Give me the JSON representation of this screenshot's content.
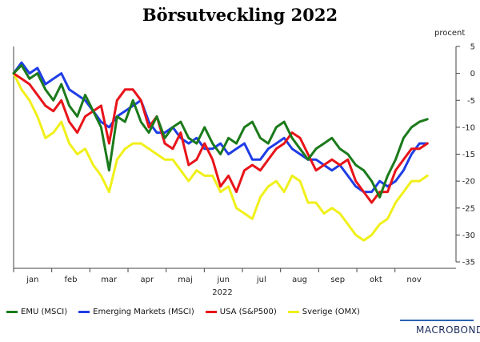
{
  "title": "Börsutveckling 2022",
  "unit": "procent",
  "brand": "MACROBOND",
  "chart_data": {
    "type": "line",
    "title": "Börsutveckling 2022",
    "ylabel": "procent",
    "xlabel": "2022",
    "ylim": [
      -35,
      5
    ],
    "yticks": [
      5,
      0,
      -5,
      -10,
      -15,
      -20,
      -25,
      -30,
      -35
    ],
    "months": [
      "jan",
      "feb",
      "mar",
      "apr",
      "maj",
      "jun",
      "jul",
      "aug",
      "sep",
      "okt",
      "nov"
    ],
    "grid": false,
    "legend": "bottom",
    "series": [
      {
        "name": "EMU (MSCI)",
        "color": "#1b7a1b",
        "values": [
          0,
          1.5,
          -1,
          0,
          -3,
          -5,
          -2,
          -6,
          -8,
          -4,
          -7,
          -10,
          -18,
          -8,
          -9,
          -5,
          -9,
          -11,
          -8,
          -12,
          -10,
          -9,
          -12,
          -13,
          -10,
          -13,
          -15,
          -12,
          -13,
          -10,
          -9,
          -12,
          -13,
          -10,
          -9,
          -12,
          -14,
          -16,
          -14,
          -13,
          -12,
          -14,
          -15,
          -17,
          -18,
          -20,
          -23,
          -19,
          -16,
          -12,
          -10,
          -9,
          -8.5
        ]
      },
      {
        "name": "Emerging Markets (MSCI)",
        "color": "#1f3de6",
        "values": [
          0,
          2,
          0,
          1,
          -2,
          -1,
          0,
          -3,
          -4,
          -5,
          -7,
          -9,
          -10,
          -8,
          -7,
          -6,
          -5,
          -9,
          -11,
          -11,
          -10,
          -12,
          -13,
          -12,
          -14,
          -14,
          -13,
          -15,
          -14,
          -13,
          -16,
          -16,
          -14,
          -13,
          -12,
          -14,
          -15,
          -16,
          -16,
          -17,
          -18,
          -17,
          -19,
          -21,
          -22,
          -22,
          -20,
          -21,
          -20,
          -18,
          -15,
          -13,
          -13
        ]
      },
      {
        "name": "USA (S&P500)",
        "color": "#e8141a",
        "values": [
          0,
          -1,
          -2,
          -4,
          -6,
          -7,
          -5,
          -9,
          -11,
          -8,
          -7,
          -6,
          -13,
          -5,
          -3,
          -3,
          -5,
          -10,
          -8,
          -13,
          -14,
          -11,
          -17,
          -16,
          -13,
          -16,
          -21,
          -19,
          -22,
          -18,
          -17,
          -18,
          -16,
          -14,
          -13,
          -11,
          -12,
          -15,
          -18,
          -17,
          -16,
          -17,
          -16,
          -20,
          -22,
          -24,
          -22,
          -22,
          -18,
          -16,
          -14,
          -14,
          -13
        ]
      },
      {
        "name": "Sverige (OMX)",
        "color": "#f0f01a",
        "values": [
          0,
          -3,
          -5,
          -8,
          -12,
          -11,
          -9,
          -13,
          -15,
          -14,
          -17,
          -19,
          -22,
          -16,
          -14,
          -13,
          -13,
          -14,
          -15,
          -16,
          -16,
          -18,
          -20,
          -18,
          -19,
          -19,
          -22,
          -21,
          -25,
          -26,
          -27,
          -23,
          -21,
          -20,
          -22,
          -19,
          -20,
          -24,
          -24,
          -26,
          -25,
          -26,
          -28,
          -30,
          -31,
          -30,
          -28,
          -27,
          -24,
          -22,
          -20,
          -20,
          -19
        ]
      }
    ]
  }
}
